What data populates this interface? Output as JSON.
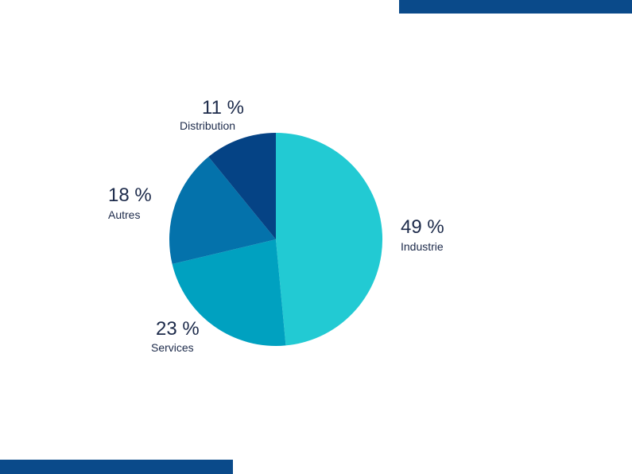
{
  "chart_data": {
    "type": "pie",
    "slices": [
      {
        "label": "Industrie",
        "value": 49,
        "value_label": "49 %",
        "color": "#22cad3"
      },
      {
        "label": "Services",
        "value": 23,
        "value_label": "23 %",
        "color": "#00a1c0"
      },
      {
        "label": "Autres",
        "value": 18,
        "value_label": "18 %",
        "color": "#0472ab"
      },
      {
        "label": "Distribution",
        "value": 11,
        "value_label": "11 %",
        "color": "#054385"
      }
    ],
    "start": "12 o'clock",
    "direction": "clockwise",
    "legend": "none"
  },
  "colors": {
    "accent_bar": "#0a4a8a",
    "text": "#1c2a4a",
    "background": "#ffffff"
  }
}
